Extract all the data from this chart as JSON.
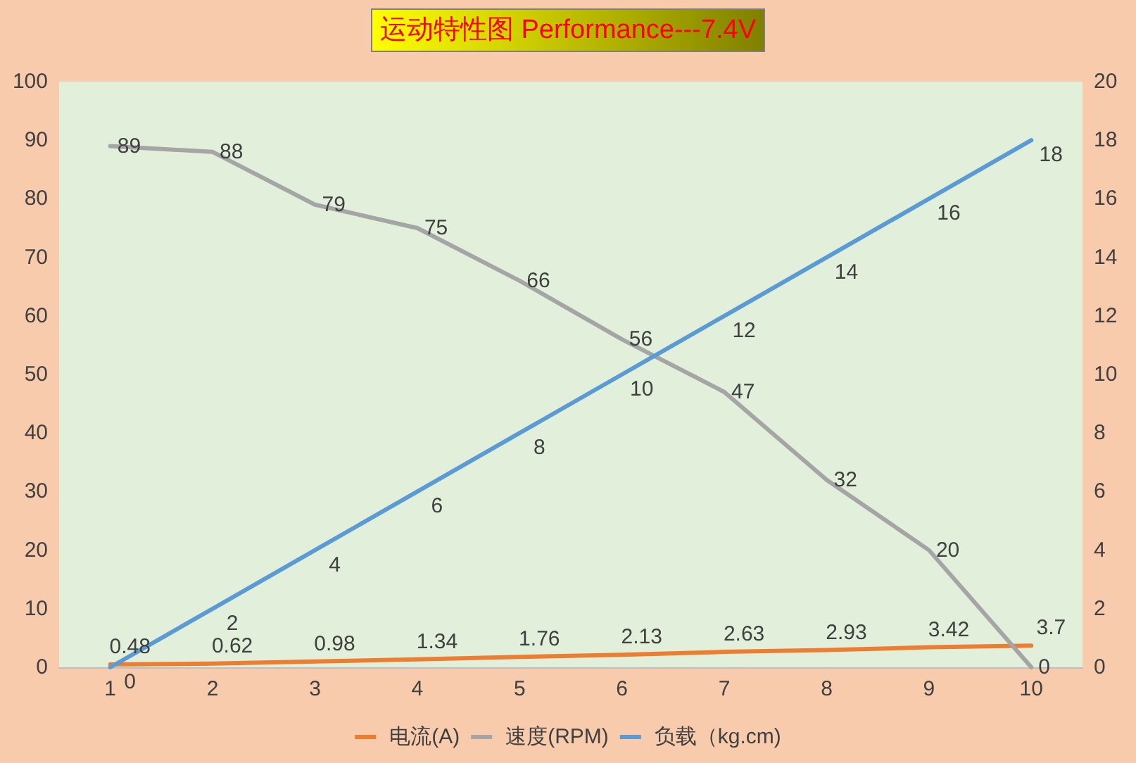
{
  "chart_data": {
    "type": "line",
    "title": "运动特性图 Performance---7.4V",
    "categories": [
      "1",
      "2",
      "3",
      "4",
      "5",
      "6",
      "7",
      "8",
      "9",
      "10"
    ],
    "series": [
      {
        "name": "电流(A)",
        "color": "#ed7d31",
        "values": [
          0.48,
          0.62,
          0.98,
          1.34,
          1.76,
          2.13,
          2.63,
          2.93,
          3.42,
          3.7
        ]
      },
      {
        "name": "速度(RPM)",
        "color": "#a5a5a5",
        "values": [
          89,
          88,
          79,
          75,
          66,
          56,
          47,
          32,
          20,
          0
        ]
      },
      {
        "name": "负载（kg.cm)",
        "color": "#5b9bd5",
        "axis": "y2",
        "values": [
          0,
          2,
          4,
          6,
          8,
          10,
          12,
          14,
          16,
          18
        ]
      }
    ],
    "ylim": [
      0,
      100
    ],
    "yticks": [
      0,
      10,
      20,
      30,
      40,
      50,
      60,
      70,
      80,
      90,
      100
    ],
    "y2lim": [
      0,
      20
    ],
    "y2ticks": [
      0,
      2,
      4,
      6,
      8,
      10,
      12,
      14,
      16,
      18,
      20
    ],
    "data_labels": true,
    "grid": false,
    "legend": "bottom",
    "marker": "none",
    "line_style": "solid"
  }
}
